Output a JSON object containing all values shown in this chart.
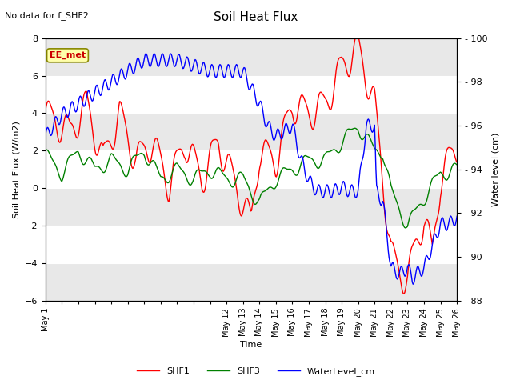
{
  "title": "Soil Heat Flux",
  "title_note": "No data for f_SHF2",
  "ylabel_left": "Soil Heat Flux (W/m2)",
  "ylabel_right": "Water level (cm)",
  "xlabel": "Time",
  "ylim_left": [
    -6,
    8
  ],
  "ylim_right": [
    88,
    100
  ],
  "yticks_left": [
    -6,
    -4,
    -2,
    0,
    2,
    4,
    6,
    8
  ],
  "yticks_right": [
    88,
    90,
    92,
    94,
    96,
    98,
    100
  ],
  "fig_bg_color": "#ffffff",
  "plot_bg_color": "#e8e8e8",
  "band_color": "#f5f5f5",
  "station_label": "EE_met",
  "station_label_color": "#cc0000",
  "station_label_bg": "#ffffaa",
  "station_label_edge": "#888800",
  "legend_entries": [
    "SHF1",
    "SHF3",
    "WaterLevel_cm"
  ],
  "line_colors": [
    "red",
    "green",
    "blue"
  ],
  "shf1_base_x": [
    0,
    1.5,
    2.5,
    3.5,
    4.5,
    5.5,
    6.5,
    7.5,
    8.5,
    9.5,
    10.5,
    11.5,
    12.5,
    13,
    14,
    15,
    16,
    17,
    18,
    19,
    19.5,
    20,
    20.5,
    21,
    21.5,
    22,
    22.5,
    23,
    23.5,
    24,
    24.5,
    25
  ],
  "shf1_base_y": [
    4.0,
    3.0,
    4.5,
    1.5,
    4.0,
    1.5,
    2.5,
    0.2,
    2.5,
    0.5,
    2.5,
    0.3,
    -1.8,
    2.0,
    1.5,
    4.5,
    4.0,
    4.5,
    6.5,
    7.5,
    6.0,
    4.5,
    0.5,
    -3.5,
    -4.5,
    -4.8,
    -3.0,
    -1.5,
    -3.5,
    0.5,
    1.5,
    2.3
  ],
  "shf3_base_x": [
    0,
    1,
    2,
    3,
    4,
    5,
    6,
    7,
    8,
    9,
    10,
    11,
    12,
    13,
    14,
    15,
    16,
    17,
    18,
    19,
    20,
    20.5,
    21,
    22,
    23,
    24,
    25
  ],
  "shf3_base_y": [
    1.8,
    0.8,
    2.0,
    1.0,
    1.5,
    1.0,
    2.0,
    0.5,
    1.0,
    0.5,
    1.0,
    0.5,
    0.5,
    -0.8,
    0.5,
    1.0,
    1.5,
    1.5,
    2.5,
    3.3,
    2.0,
    2.0,
    -0.2,
    -2.0,
    -0.5,
    0.8,
    1.0
  ],
  "wl_base_x": [
    0,
    0.5,
    1,
    2,
    3,
    4,
    5,
    6,
    8,
    10,
    11,
    12,
    13,
    13.5,
    14,
    15,
    15.5,
    16,
    16.5,
    17,
    17.5,
    18,
    18.5,
    19,
    19.5,
    20,
    20.1,
    20.5,
    21,
    21.5,
    22,
    22.3,
    22.5,
    23,
    23.5,
    24,
    24.5,
    25
  ],
  "wl_base_y": [
    95.5,
    96.0,
    96.5,
    97.0,
    97.5,
    98.0,
    98.5,
    99.0,
    99.0,
    98.5,
    98.5,
    98.5,
    97.0,
    96.0,
    95.5,
    96.0,
    94.5,
    93.5,
    93.0,
    93.0,
    93.0,
    93.2,
    93.0,
    93.0,
    96.0,
    96.0,
    93.0,
    92.5,
    89.5,
    89.2,
    89.5,
    89.0,
    89.2,
    89.5,
    90.5,
    91.5,
    91.5,
    91.8
  ]
}
